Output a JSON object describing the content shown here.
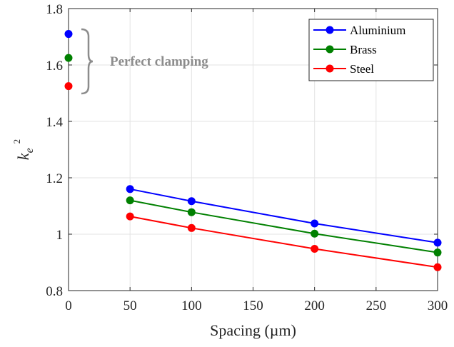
{
  "chart_data": {
    "type": "line",
    "xlabel": "Spacing (µm)",
    "ylabel": {
      "base": "k",
      "sub": "e",
      "sup": "2"
    },
    "xlim": [
      0,
      300
    ],
    "ylim": [
      0.8,
      1.8
    ],
    "xticks": [
      0,
      50,
      100,
      150,
      200,
      250,
      300
    ],
    "yticks": [
      0.8,
      1.0,
      1.2,
      1.4,
      1.6,
      1.8
    ],
    "xtick_labels": [
      "0",
      "50",
      "100",
      "150",
      "200",
      "250",
      "300"
    ],
    "ytick_labels": [
      "0.8",
      "1",
      "1.2",
      "1.4",
      "1.6",
      "1.8"
    ],
    "grid": true,
    "legend_position": "top-right",
    "series": [
      {
        "name": "Aluminium",
        "color": "#0000ff",
        "x": [
          50,
          100,
          200,
          300
        ],
        "y": [
          1.16,
          1.117,
          1.038,
          0.97
        ],
        "clamped_value": 1.71
      },
      {
        "name": "Brass",
        "color": "#008000",
        "x": [
          50,
          100,
          200,
          300
        ],
        "y": [
          1.12,
          1.078,
          1.002,
          0.935
        ],
        "clamped_value": 1.625
      },
      {
        "name": "Steel",
        "color": "#ff0000",
        "x": [
          50,
          100,
          200,
          300
        ],
        "y": [
          1.063,
          1.022,
          0.948,
          0.883
        ],
        "clamped_value": 1.525
      }
    ],
    "annotation": {
      "text": "Perfect clamping",
      "color": "#8c8c8c"
    }
  }
}
